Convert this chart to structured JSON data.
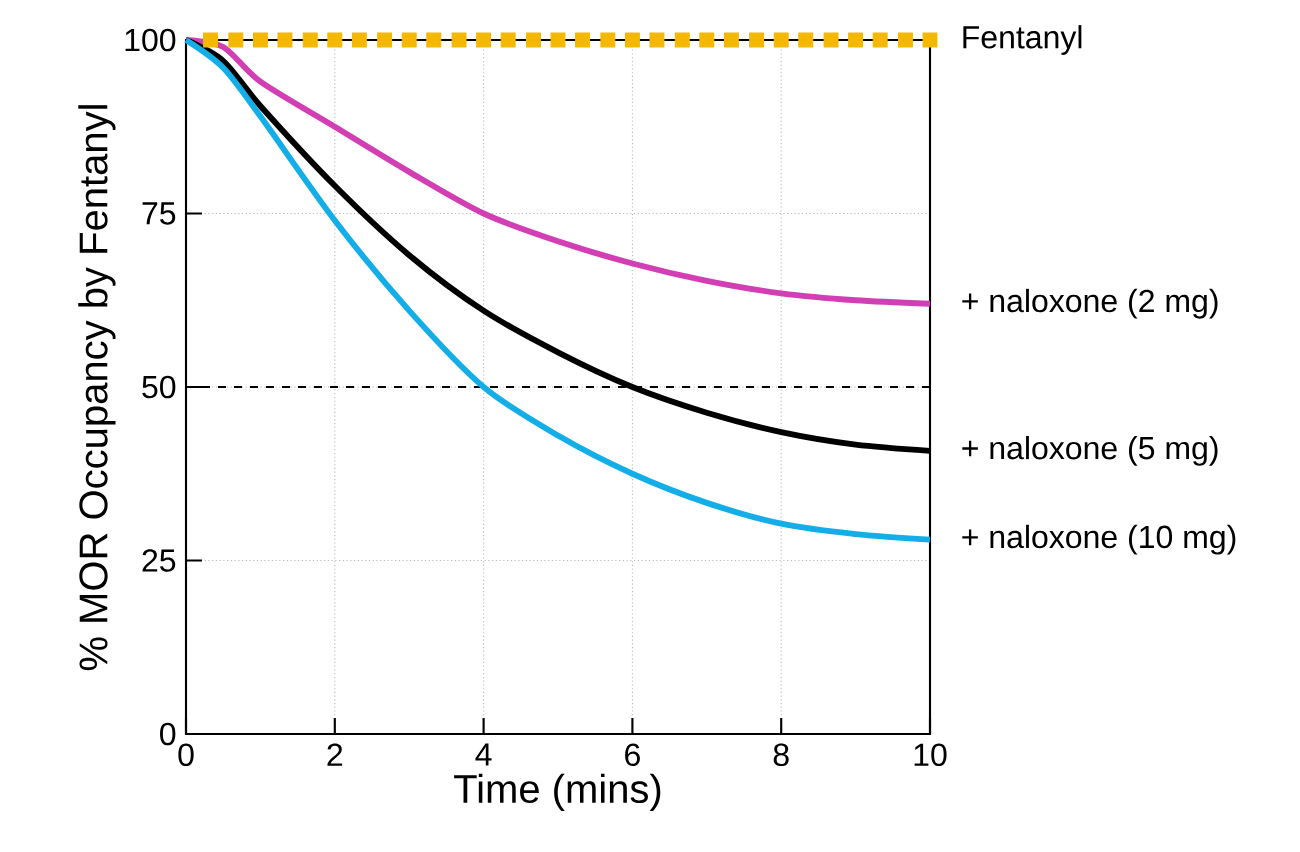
{
  "chart_data": {
    "type": "line",
    "xlabel": "Time (mins)",
    "ylabel": "% MOR Occupancy by Fentanyl",
    "xlim": [
      0,
      10
    ],
    "ylim": [
      0,
      100
    ],
    "xticks": [
      0,
      2,
      4,
      6,
      8,
      10
    ],
    "yticks": [
      0,
      25,
      50,
      75,
      100
    ],
    "grid": true,
    "legend": false,
    "marker": "none",
    "line_style": "solid",
    "x": [
      0,
      0.5,
      1,
      2,
      3,
      4,
      5,
      6,
      7,
      8,
      9,
      10
    ],
    "series": [
      {
        "name": "Fentanyl",
        "type": "scatter",
        "marker": "square",
        "color": "#f5b800",
        "x": [
          0.33,
          0.67,
          1,
          1.33,
          1.67,
          2,
          2.33,
          2.67,
          3,
          3.33,
          3.67,
          4,
          4.33,
          4.67,
          5,
          5.33,
          5.67,
          6,
          6.33,
          6.67,
          7,
          7.33,
          7.67,
          8,
          8.33,
          8.67,
          9,
          9.33,
          9.67,
          10
        ],
        "values": [
          100,
          100,
          100,
          100,
          100,
          100,
          100,
          100,
          100,
          100,
          100,
          100,
          100,
          100,
          100,
          100,
          100,
          100,
          100,
          100,
          100,
          100,
          100,
          100,
          100,
          100,
          100,
          100,
          100,
          100
        ]
      },
      {
        "name": "+ naloxone (2 mg)",
        "color": "#d23fb4",
        "values": [
          100,
          99,
          94,
          87.5,
          81,
          75,
          71,
          67.8,
          65.3,
          63.5,
          62.5,
          62
        ]
      },
      {
        "name": "+ naloxone (5 mg)",
        "color": "#000000",
        "values": [
          100,
          97,
          90.5,
          79,
          69,
          61,
          55,
          50,
          46.3,
          43.5,
          41.7,
          40.8
        ]
      },
      {
        "name": "+ naloxone (10 mg)",
        "color": "#13aee8",
        "values": [
          100,
          96,
          89,
          74,
          61,
          50,
          43,
          37.5,
          33.3,
          30.3,
          28.8,
          28
        ]
      }
    ],
    "ref_lines": [
      {
        "axis": "y",
        "value": 50,
        "color": "#000000",
        "line_style": "dashed"
      }
    ]
  }
}
